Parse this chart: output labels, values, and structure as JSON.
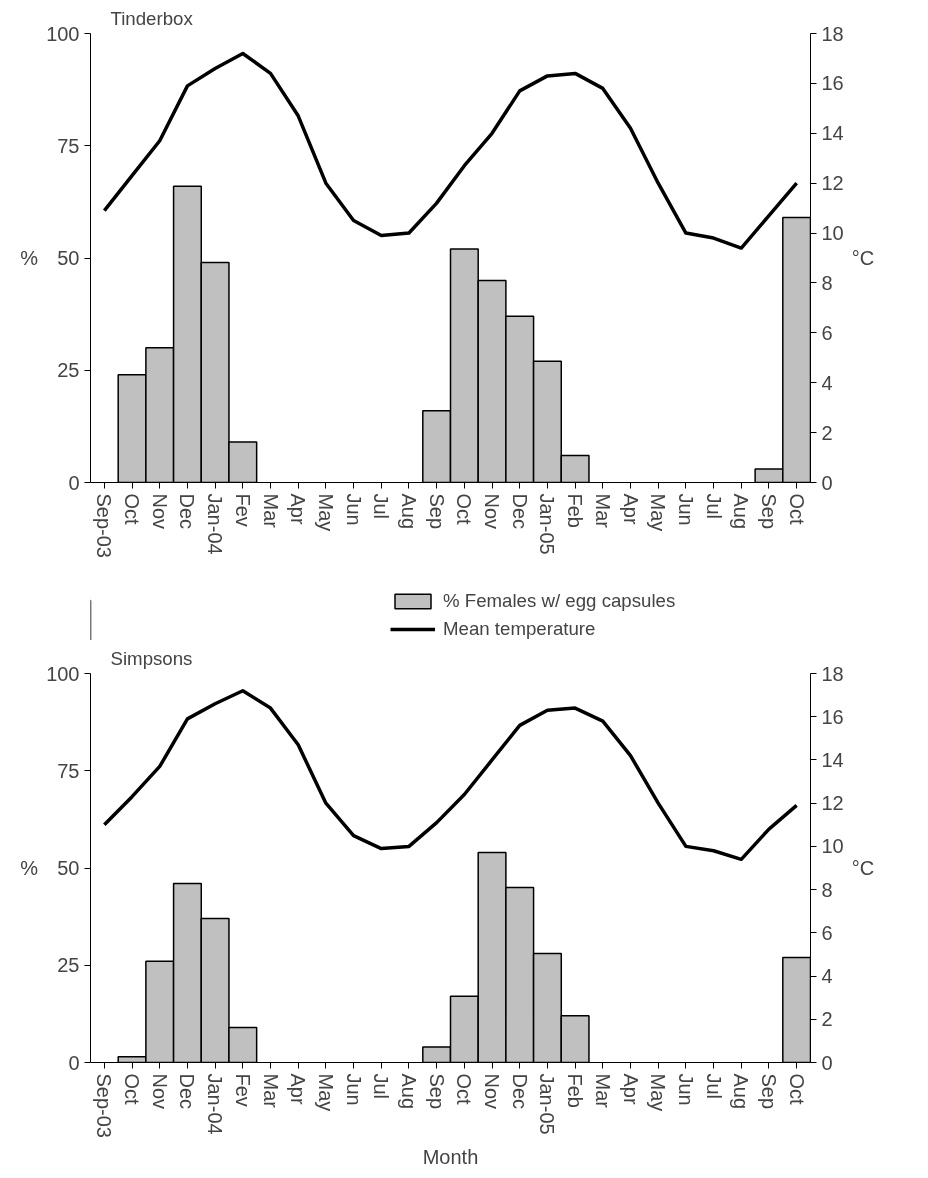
{
  "chart_data": [
    {
      "type": "bar",
      "title": "Tinderbox",
      "ylabel": "%",
      "y2label": "°C",
      "categories": [
        "Sep-03",
        "Oct",
        "Nov",
        "Dec",
        "Jan-04",
        "Fev",
        "Mar",
        "Apr",
        "May",
        "Jun",
        "Jul",
        "Aug",
        "Sep",
        "Oct",
        "Nov",
        "Dec",
        "Jan-05",
        "Feb",
        "Mar",
        "Apr",
        "May",
        "Jun",
        "Jul",
        "Aug",
        "Sep",
        "Oct"
      ],
      "series": [
        {
          "name": "% Females w/ egg capsules",
          "color": "#c0c0c0",
          "values": [
            null,
            24,
            30,
            66,
            49,
            9,
            null,
            null,
            null,
            null,
            null,
            null,
            16,
            52,
            45,
            37,
            27,
            6,
            null,
            null,
            null,
            null,
            null,
            null,
            3,
            59
          ]
        },
        {
          "type": "line",
          "name": "Mean temperature",
          "axis": "y2",
          "color": "#000000",
          "values": [
            10.9,
            12.3,
            13.7,
            15.9,
            16.6,
            17.2,
            16.4,
            14.7,
            12.0,
            10.5,
            9.9,
            10.0,
            11.2,
            12.7,
            14.0,
            15.7,
            16.3,
            16.4,
            15.8,
            14.2,
            12.0,
            10.0,
            9.8,
            9.4,
            10.7,
            12.0
          ]
        }
      ],
      "ylim": [
        0,
        100
      ],
      "yticks": [
        0,
        25,
        50,
        75,
        100
      ],
      "y2lim": [
        0,
        18
      ],
      "y2ticks": [
        0,
        2,
        4,
        6,
        8,
        10,
        12,
        14,
        16,
        18
      ],
      "grid": false,
      "legend": "bottom",
      "line_style": "solid",
      "marker": "none"
    },
    {
      "type": "bar",
      "title": "Simpsons",
      "xlabel": "Month",
      "ylabel": "%",
      "y2label": "°C",
      "categories": [
        "Sep-03",
        "Oct",
        "Nov",
        "Dec",
        "Jan-04",
        "Fev",
        "Mar",
        "Apr",
        "May",
        "Jun",
        "Jul",
        "Aug",
        "Sep",
        "Oct",
        "Nov",
        "Dec",
        "Jan-05",
        "Feb",
        "Mar",
        "Apr",
        "May",
        "Jun",
        "Jul",
        "Aug",
        "Sep",
        "Oct"
      ],
      "series": [
        {
          "color": "#c0c0c0",
          "values": [
            null,
            1.5,
            26,
            46,
            37,
            9,
            null,
            null,
            null,
            null,
            null,
            null,
            4,
            17,
            54,
            45,
            28,
            12,
            null,
            null,
            null,
            null,
            null,
            null,
            null,
            27
          ]
        },
        {
          "type": "line",
          "axis": "y2",
          "color": "#000000",
          "values": [
            11.0,
            12.3,
            13.7,
            15.9,
            16.6,
            17.2,
            16.4,
            14.7,
            12.0,
            10.5,
            9.9,
            10.0,
            11.1,
            12.4,
            14.0,
            15.6,
            16.3,
            16.4,
            15.8,
            14.2,
            12.0,
            10.0,
            9.8,
            9.4,
            10.8,
            11.9
          ]
        }
      ],
      "ylim": [
        0,
        100
      ],
      "yticks": [
        0,
        25,
        50,
        75,
        100
      ],
      "y2lim": [
        0,
        18
      ],
      "y2ticks": [
        0,
        2,
        4,
        6,
        8,
        10,
        12,
        14,
        16,
        18
      ],
      "grid": false,
      "legend": false,
      "line_style": "solid",
      "marker": "none"
    }
  ]
}
